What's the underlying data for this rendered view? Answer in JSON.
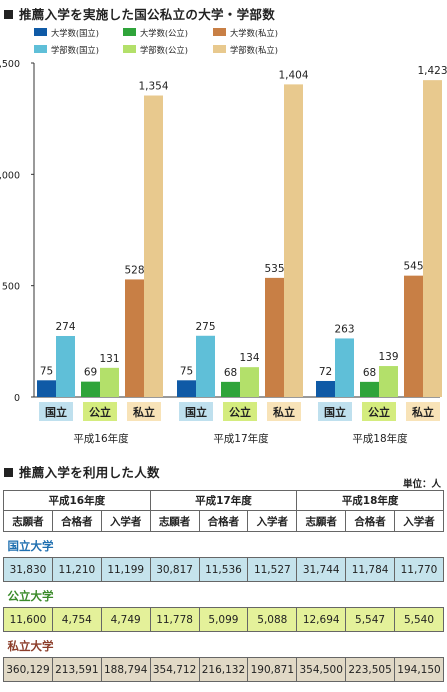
{
  "chart_section_title": "推薦入学を実施した国公私立の大学・学部数",
  "table_section_title": "推薦入学を利用した人数",
  "unit_label": "単位：人",
  "colors": {
    "univ_national": "#0f5aa6",
    "dept_national": "#5fbfd8",
    "univ_public": "#2fa43a",
    "dept_public": "#b3e06a",
    "univ_private": "#c87f45",
    "dept_private": "#e8c98e",
    "label_national_bg": "#bfe0ee",
    "label_public_bg": "#d4ec7e",
    "label_private_bg": "#f8e3b8"
  },
  "chart_data": {
    "type": "bar",
    "categories": [
      "平成16年度",
      "平成17年度",
      "平成18年度"
    ],
    "sub_labels": [
      "国立",
      "公立",
      "私立"
    ],
    "legend": [
      {
        "name": "大学数(国立)",
        "color": "#0f5aa6"
      },
      {
        "name": "大学数(公立)",
        "color": "#2fa43a"
      },
      {
        "name": "大学数(私立)",
        "color": "#c87f45"
      },
      {
        "name": "学部数(国立)",
        "color": "#5fbfd8"
      },
      {
        "name": "学部数(公立)",
        "color": "#b3e06a"
      },
      {
        "name": "学部数(私立)",
        "color": "#e8c98e"
      }
    ],
    "series": [
      {
        "name": "大学数(国立)",
        "values": [
          75,
          75,
          72
        ]
      },
      {
        "name": "学部数(国立)",
        "values": [
          274,
          275,
          263
        ]
      },
      {
        "name": "大学数(公立)",
        "values": [
          69,
          68,
          68
        ]
      },
      {
        "name": "学部数(公立)",
        "values": [
          131,
          134,
          139
        ]
      },
      {
        "name": "大学数(私立)",
        "values": [
          528,
          535,
          545
        ]
      },
      {
        "name": "学部数(私立)",
        "values": [
          1354,
          1404,
          1423
        ]
      }
    ],
    "value_labels": [
      [
        "75",
        "274",
        "69",
        "131",
        "528",
        "1,354"
      ],
      [
        "75",
        "275",
        "68",
        "134",
        "535",
        "1,404"
      ],
      [
        "72",
        "263",
        "68",
        "139",
        "545",
        "1,423"
      ]
    ],
    "y_ticks": [
      "0",
      "500",
      "1,000",
      "1,500"
    ],
    "ylim": [
      0,
      1500
    ],
    "grid": false
  },
  "table": {
    "years": [
      "平成16年度",
      "平成17年度",
      "平成18年度"
    ],
    "headers": [
      "志願者",
      "合格者",
      "入学者",
      "志願者",
      "合格者",
      "入学者",
      "志願者",
      "合格者",
      "入学者"
    ],
    "categories": [
      {
        "label": "国立大学",
        "values": [
          "31,830",
          "11,210",
          "11,199",
          "30,817",
          "11,536",
          "11,527",
          "31,744",
          "11,784",
          "11,770"
        ]
      },
      {
        "label": "公立大学",
        "values": [
          "11,600",
          "4,754",
          "4,749",
          "11,778",
          "5,099",
          "5,088",
          "12,694",
          "5,547",
          "5,540"
        ]
      },
      {
        "label": "私立大学",
        "values": [
          "360,129",
          "213,591",
          "188,794",
          "354,712",
          "216,132",
          "190,871",
          "354,500",
          "223,505",
          "194,150"
        ]
      }
    ],
    "category_colors": [
      "#1f6fb0",
      "#3a8a2a",
      "#8b3d2a"
    ]
  }
}
